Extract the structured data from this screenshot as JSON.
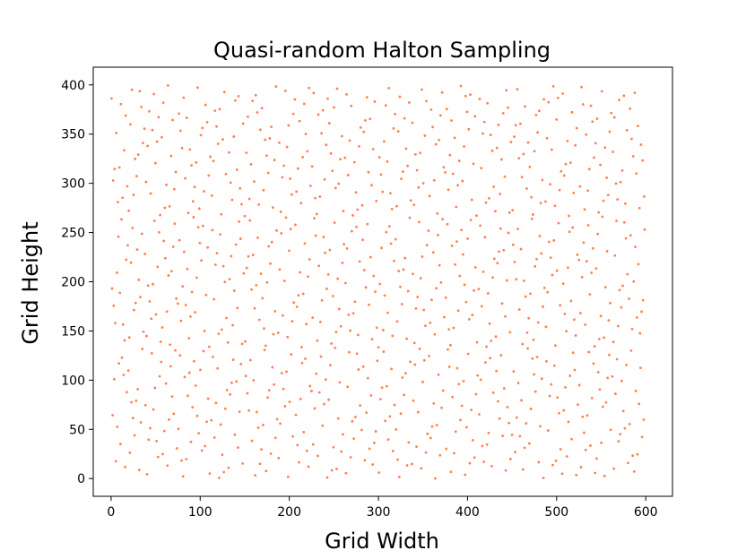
{
  "chart_data": {
    "type": "scatter",
    "title": "Quasi-random Halton Sampling",
    "xlabel": "Grid Width",
    "ylabel": "Grid Height",
    "xlim": [
      -20,
      630
    ],
    "ylim": [
      -18,
      418
    ],
    "xticks": [
      0,
      100,
      200,
      300,
      400,
      500,
      600
    ],
    "yticks": [
      0,
      50,
      100,
      150,
      200,
      250,
      300,
      350,
      400
    ],
    "grid": false,
    "legend": "none",
    "series": [
      {
        "color": "#ff7f50",
        "sampling": "halton",
        "bases": [
          2,
          3
        ],
        "skip": 1,
        "count": 1000,
        "x_range": [
          0,
          600
        ],
        "y_range": [
          0,
          400
        ]
      }
    ]
  }
}
